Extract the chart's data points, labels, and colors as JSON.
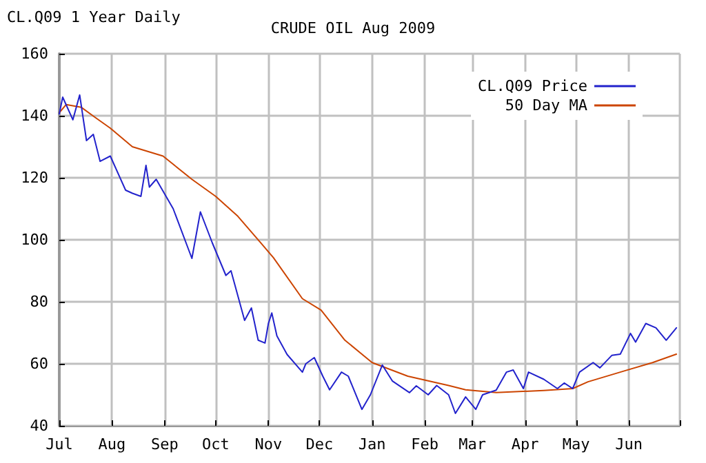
{
  "chart_data": {
    "type": "line",
    "title": "CRUDE OIL Aug 2009",
    "annotations": [
      "CL.Q09 1 Year Daily"
    ],
    "series": [
      {
        "name": "CL.Q09 Price",
        "color": "#2222cc",
        "x": [
          "2008-07-01",
          "2008-07-03",
          "2008-07-09",
          "2008-07-13",
          "2008-07-17",
          "2008-07-21",
          "2008-07-25",
          "2008-07-31",
          "2008-08-09",
          "2008-08-13",
          "2008-08-18",
          "2008-08-21",
          "2008-08-23",
          "2008-08-27",
          "2008-09-06",
          "2008-09-17",
          "2008-09-22",
          "2008-09-29",
          "2008-10-07",
          "2008-10-10",
          "2008-10-18",
          "2008-10-22",
          "2008-10-26",
          "2008-10-30",
          "2008-11-01",
          "2008-11-03",
          "2008-11-06",
          "2008-11-12",
          "2008-11-21",
          "2008-11-23",
          "2008-11-28",
          "2008-12-03",
          "2008-12-07",
          "2008-12-14",
          "2008-12-18",
          "2008-12-26",
          "2008-12-31",
          "2009-01-07",
          "2009-01-13",
          "2009-01-23",
          "2009-01-27",
          "2009-02-03",
          "2009-02-08",
          "2009-02-15",
          "2009-02-19",
          "2009-02-25",
          "2009-03-03",
          "2009-03-07",
          "2009-03-15",
          "2009-03-21",
          "2009-03-25",
          "2009-03-31",
          "2009-04-03",
          "2009-04-12",
          "2009-04-20",
          "2009-04-24",
          "2009-04-29",
          "2009-05-03",
          "2009-05-11",
          "2009-05-15",
          "2009-05-22",
          "2009-05-27",
          "2009-06-02",
          "2009-06-05",
          "2009-06-11",
          "2009-06-17",
          "2009-06-23",
          "2009-06-29"
        ],
        "values": [
          140.6,
          146,
          138.7,
          146.7,
          132,
          134,
          125.3,
          127,
          116,
          115,
          114,
          124,
          117,
          119.5,
          110,
          94,
          109,
          99,
          88.5,
          90,
          74,
          78,
          67.6,
          66.7,
          73,
          76.4,
          69,
          63,
          57.3,
          60,
          62,
          56,
          51.6,
          57.3,
          56,
          45.3,
          50,
          59.6,
          54.4,
          50.7,
          52.9,
          50,
          53,
          50,
          44,
          49.3,
          45.3,
          50,
          51.5,
          57.3,
          58,
          52,
          57.3,
          55,
          52,
          53.8,
          52,
          57.3,
          60.4,
          58.7,
          62.7,
          63.1,
          69.8,
          67,
          73,
          71.6,
          67.6,
          71.6
        ]
      },
      {
        "name": "50 Day MA",
        "color": "#cc4400",
        "x": [
          "2008-07-01",
          "2008-07-05",
          "2008-07-14",
          "2008-07-22",
          "2008-07-31",
          "2008-08-13",
          "2008-08-31",
          "2008-09-17",
          "2008-10-01",
          "2008-10-14",
          "2008-10-28",
          "2008-11-04",
          "2008-11-21",
          "2008-12-02",
          "2008-12-16",
          "2009-01-01",
          "2009-01-22",
          "2009-02-15",
          "2009-02-25",
          "2009-03-15",
          "2009-04-12",
          "2009-04-29",
          "2009-05-08",
          "2009-05-30",
          "2009-06-15",
          "2009-06-29"
        ],
        "values": [
          141,
          143.6,
          142.7,
          139.5,
          136,
          130,
          127,
          119.5,
          114,
          107.6,
          98.7,
          94.2,
          81,
          77.3,
          67.6,
          60.4,
          56,
          53,
          51.6,
          50.7,
          51.4,
          52,
          54.2,
          57.8,
          60.4,
          63.1
        ]
      }
    ],
    "xlim": [
      "2008-07-01",
      "2009-07-01"
    ],
    "xticks": [
      {
        "value": "2008-07-01",
        "label": "Jul"
      },
      {
        "value": "2008-08-01",
        "label": "Aug"
      },
      {
        "value": "2008-09-01",
        "label": "Sep"
      },
      {
        "value": "2008-10-01",
        "label": "Oct"
      },
      {
        "value": "2008-11-01",
        "label": "Nov"
      },
      {
        "value": "2008-12-01",
        "label": "Dec"
      },
      {
        "value": "2009-01-01",
        "label": "Jan"
      },
      {
        "value": "2009-02-01",
        "label": "Feb"
      },
      {
        "value": "2009-03-01",
        "label": "Mar"
      },
      {
        "value": "2009-04-01",
        "label": "Apr"
      },
      {
        "value": "2009-05-01",
        "label": "May"
      },
      {
        "value": "2009-06-01",
        "label": "Jun"
      },
      {
        "value": "2009-07-01",
        "label": null
      }
    ],
    "ylim": [
      40,
      160
    ],
    "yticks": [
      40,
      60,
      80,
      100,
      120,
      140,
      160
    ],
    "grid": true,
    "legend": "top right",
    "marker": "none",
    "line_style": "solid"
  }
}
